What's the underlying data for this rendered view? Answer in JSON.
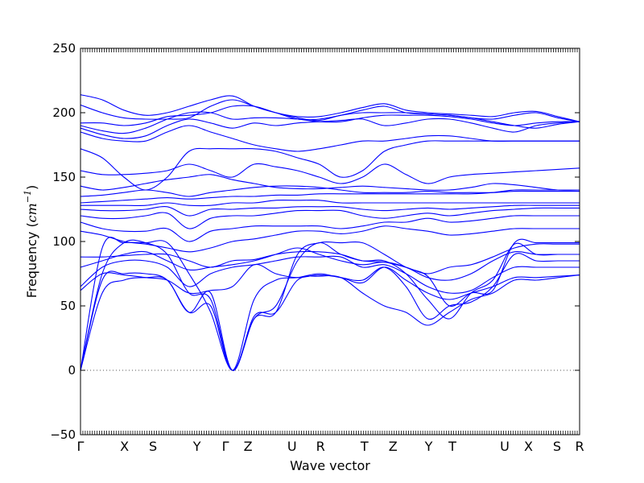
{
  "chart_data": {
    "type": "line",
    "title": "",
    "xlabel": "Wave vector",
    "ylabel": "Frequency (cm⁻¹)",
    "ylabel_parts": {
      "prefix": "Frequency (",
      "unit": "cm",
      "exponent": "−1",
      "suffix": ")"
    },
    "ylim": [
      -50,
      250
    ],
    "yticks": [
      -50,
      0,
      50,
      100,
      150,
      200,
      250
    ],
    "ytick_labels": [
      "−50",
      "0",
      "50",
      "100",
      "150",
      "200",
      "250"
    ],
    "xlim": [
      0,
      21
    ],
    "zero_line": {
      "y": 0,
      "style": "dotted"
    },
    "high_symmetry_points": [
      {
        "label": "Γ",
        "x": 0
      },
      {
        "label": "X",
        "x": 1.85
      },
      {
        "label": "S",
        "x": 3.05
      },
      {
        "label": "Y",
        "x": 4.9
      },
      {
        "label": "Γ",
        "x": 6.1
      },
      {
        "label": "Z",
        "x": 7.05
      },
      {
        "label": "U",
        "x": 8.9
      },
      {
        "label": "R",
        "x": 10.1
      },
      {
        "label": "T",
        "x": 11.95
      },
      {
        "label": "Z",
        "x": 13.15
      },
      {
        "label": "Y",
        "x": 14.65
      },
      {
        "label": "T",
        "x": 15.65
      },
      {
        "label": "U",
        "x": 17.85
      },
      {
        "label": "X",
        "x": 18.85
      },
      {
        "label": "S",
        "x": 20.05
      },
      {
        "label": "R",
        "x": 21
      }
    ],
    "band_color": "#0000ff",
    "series": [
      {
        "values": [
          0,
          95,
          99,
          99,
          99,
          75,
          45,
          0,
          40,
          45,
          90,
          99,
          99,
          99,
          90,
          80,
          73,
          50,
          60,
          62,
          99,
          99,
          99,
          99
        ]
      },
      {
        "values": [
          0,
          75,
          99,
          99,
          90,
          60,
          55,
          0,
          40,
          50,
          85,
          99,
          90,
          85,
          85,
          75,
          55,
          40,
          60,
          70,
          98,
          90,
          90,
          90
        ]
      },
      {
        "values": [
          0,
          70,
          75,
          75,
          70,
          45,
          50,
          0,
          55,
          70,
          72,
          75,
          72,
          70,
          80,
          65,
          40,
          50,
          53,
          65,
          90,
          85,
          85,
          85
        ]
      },
      {
        "values": [
          0,
          60,
          70,
          72,
          70,
          45,
          60,
          0,
          42,
          45,
          70,
          73,
          72,
          60,
          50,
          45,
          35,
          45,
          55,
          60,
          70,
          70,
          72,
          74
        ]
      },
      {
        "values": [
          62,
          75,
          74,
          72,
          70,
          60,
          62,
          65,
          82,
          75,
          72,
          74,
          72,
          68,
          80,
          70,
          60,
          55,
          60,
          65,
          72,
          72,
          73,
          74
        ]
      },
      {
        "values": [
          65,
          80,
          85,
          85,
          80,
          65,
          75,
          80,
          82,
          85,
          88,
          88,
          88,
          80,
          82,
          75,
          65,
          60,
          62,
          72,
          80,
          80,
          80,
          80
        ]
      },
      {
        "values": [
          80,
          85,
          90,
          92,
          85,
          78,
          80,
          82,
          85,
          90,
          95,
          90,
          85,
          82,
          84,
          80,
          72,
          70,
          75,
          85,
          92,
          90,
          90,
          90
        ]
      },
      {
        "values": [
          88,
          88,
          89,
          90,
          90,
          85,
          80,
          85,
          86,
          90,
          92,
          92,
          90,
          85,
          84,
          80,
          75,
          80,
          82,
          88,
          95,
          98,
          98,
          98
        ]
      },
      {
        "values": [
          108,
          105,
          100,
          98,
          95,
          92,
          95,
          100,
          102,
          105,
          108,
          108,
          106,
          108,
          112,
          110,
          108,
          105,
          106,
          108,
          110,
          110,
          110,
          110
        ]
      },
      {
        "values": [
          115,
          110,
          108,
          108,
          110,
          100,
          108,
          110,
          112,
          112,
          112,
          112,
          110,
          112,
          115,
          115,
          118,
          115,
          116,
          118,
          120,
          120,
          120,
          120
        ]
      },
      {
        "values": [
          120,
          118,
          118,
          120,
          122,
          110,
          118,
          120,
          120,
          122,
          124,
          124,
          124,
          120,
          118,
          120,
          122,
          120,
          122,
          124,
          125,
          126,
          126,
          126
        ]
      },
      {
        "values": [
          125,
          124,
          124,
          125,
          127,
          120,
          125,
          125,
          126,
          126,
          127,
          127,
          127,
          125,
          124,
          125,
          126,
          125,
          126,
          127,
          128,
          128,
          128,
          128
        ]
      },
      {
        "values": [
          128,
          128,
          128,
          128,
          130,
          128,
          128,
          130,
          130,
          132,
          132,
          132,
          130,
          130,
          130,
          130,
          130,
          130,
          130,
          130,
          130,
          130,
          130,
          130
        ]
      },
      {
        "values": [
          130,
          131,
          132,
          133,
          134,
          133,
          134,
          135,
          135,
          136,
          136,
          137,
          137,
          137,
          137,
          137,
          137,
          137,
          137,
          138,
          140,
          140,
          140,
          140
        ]
      },
      {
        "values": [
          135,
          136,
          138,
          140,
          138,
          135,
          138,
          140,
          142,
          143,
          143,
          142,
          140,
          138,
          138,
          138,
          139,
          138,
          138,
          138,
          139,
          139,
          139,
          139
        ]
      },
      {
        "values": [
          143,
          140,
          142,
          145,
          148,
          150,
          152,
          148,
          145,
          142,
          141,
          141,
          142,
          143,
          142,
          141,
          140,
          140,
          142,
          145,
          144,
          142,
          140,
          140
        ]
      },
      {
        "values": [
          155,
          152,
          152,
          153,
          155,
          160,
          155,
          150,
          160,
          158,
          155,
          150,
          145,
          150,
          160,
          152,
          145,
          150,
          152,
          153,
          154,
          155,
          156,
          157
        ]
      },
      {
        "values": [
          172,
          165,
          150,
          140,
          150,
          170,
          172,
          172,
          172,
          170,
          165,
          160,
          150,
          155,
          170,
          175,
          178,
          178,
          178,
          178,
          178,
          178,
          178,
          178
        ]
      },
      {
        "values": [
          185,
          180,
          178,
          178,
          185,
          190,
          185,
          180,
          175,
          172,
          170,
          172,
          175,
          178,
          178,
          180,
          182,
          182,
          180,
          178,
          178,
          178,
          178,
          178
        ]
      },
      {
        "values": [
          188,
          183,
          180,
          182,
          190,
          195,
          192,
          188,
          192,
          190,
          192,
          193,
          194,
          195,
          190,
          192,
          195,
          195,
          192,
          188,
          185,
          190,
          192,
          193
        ]
      },
      {
        "values": [
          190,
          186,
          184,
          188,
          195,
          200,
          200,
          195,
          196,
          196,
          195,
          193,
          193,
          196,
          198,
          198,
          198,
          197,
          195,
          192,
          190,
          192,
          193,
          193
        ]
      },
      {
        "values": [
          192,
          192,
          190,
          192,
          197,
          198,
          200,
          205,
          205,
          200,
          196,
          194,
          198,
          200,
          200,
          200,
          199,
          198,
          196,
          195,
          198,
          200,
          196,
          193
        ]
      },
      {
        "values": [
          206,
          200,
          196,
          195,
          195,
          196,
          205,
          210,
          205,
          200,
          195,
          195,
          198,
          202,
          205,
          200,
          199,
          198,
          196,
          193,
          190,
          188,
          191,
          193
        ]
      },
      {
        "values": [
          214,
          210,
          202,
          198,
          200,
          205,
          210,
          213,
          205,
          200,
          197,
          197,
          200,
          204,
          207,
          202,
          200,
          199,
          198,
          197,
          200,
          201,
          197,
          193
        ]
      }
    ]
  }
}
